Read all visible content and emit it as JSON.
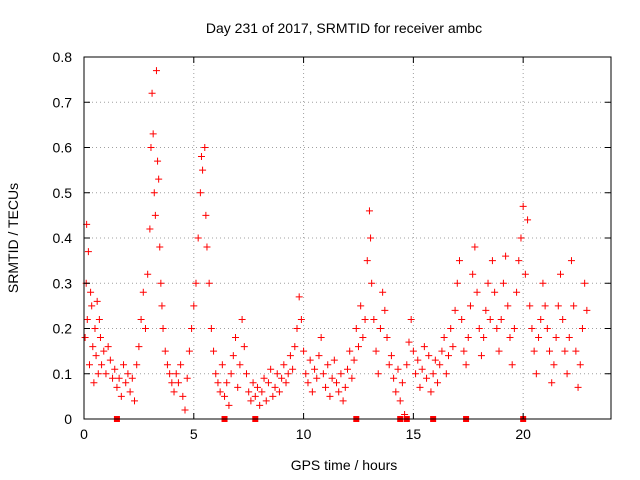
{
  "chart_data": {
    "type": "scatter",
    "title": "Day 231 of 2017, SRMTID for receiver ambc",
    "xlabel": "GPS time / hours",
    "ylabel": "SRMTID / TECUs",
    "xlim": [
      0,
      24
    ],
    "ylim": [
      0,
      0.8
    ],
    "x_ticks": [
      0,
      5,
      10,
      15,
      20
    ],
    "y_ticks": [
      0,
      0.1,
      0.2,
      0.3,
      0.4,
      0.5,
      0.6,
      0.7,
      0.8
    ],
    "x_tick_labels": [
      "0",
      "5",
      "10",
      "15",
      "20"
    ],
    "y_tick_labels": [
      "0",
      "0.1",
      "0.2",
      "0.3",
      "0.4",
      "0.5",
      "0.6",
      "0.7",
      "0.8"
    ],
    "grid": true,
    "marker": "plus",
    "color": "#ff0000",
    "series": [
      {
        "points": [
          [
            0.05,
            0.18
          ],
          [
            0.1,
            0.3
          ],
          [
            0.12,
            0.43
          ],
          [
            0.15,
            0.22
          ],
          [
            0.2,
            0.37
          ],
          [
            0.25,
            0.12
          ],
          [
            0.3,
            0.28
          ],
          [
            0.35,
            0.25
          ],
          [
            0.4,
            0.16
          ],
          [
            0.45,
            0.08
          ],
          [
            0.5,
            0.2
          ],
          [
            0.55,
            0.14
          ],
          [
            0.6,
            0.26
          ],
          [
            0.65,
            0.1
          ],
          [
            0.7,
            0.22
          ],
          [
            0.75,
            0.18
          ],
          [
            0.8,
            0.12
          ],
          [
            0.9,
            0.15
          ],
          [
            1.0,
            0.1
          ],
          [
            1.1,
            0.16
          ],
          [
            1.2,
            0.13
          ],
          [
            1.3,
            0.09
          ],
          [
            1.4,
            0.11
          ],
          [
            1.5,
            0.07
          ],
          [
            1.6,
            0.09
          ],
          [
            1.7,
            0.05
          ],
          [
            1.8,
            0.12
          ],
          [
            1.9,
            0.08
          ],
          [
            2.0,
            0.1
          ],
          [
            2.1,
            0.06
          ],
          [
            2.2,
            0.09
          ],
          [
            2.3,
            0.04
          ],
          [
            2.4,
            0.12
          ],
          [
            2.5,
            0.16
          ],
          [
            2.6,
            0.22
          ],
          [
            2.7,
            0.28
          ],
          [
            2.8,
            0.2
          ],
          [
            2.9,
            0.32
          ],
          [
            3.0,
            0.42
          ],
          [
            3.05,
            0.6
          ],
          [
            3.1,
            0.72
          ],
          [
            3.15,
            0.63
          ],
          [
            3.2,
            0.5
          ],
          [
            3.25,
            0.45
          ],
          [
            3.3,
            0.77
          ],
          [
            3.35,
            0.57
          ],
          [
            3.4,
            0.53
          ],
          [
            3.45,
            0.38
          ],
          [
            3.5,
            0.3
          ],
          [
            3.55,
            0.25
          ],
          [
            3.6,
            0.2
          ],
          [
            3.7,
            0.15
          ],
          [
            3.8,
            0.12
          ],
          [
            3.9,
            0.1
          ],
          [
            4.0,
            0.08
          ],
          [
            4.1,
            0.06
          ],
          [
            4.2,
            0.1
          ],
          [
            4.3,
            0.08
          ],
          [
            4.4,
            0.12
          ],
          [
            4.5,
            0.05
          ],
          [
            4.6,
            0.02
          ],
          [
            4.7,
            0.09
          ],
          [
            4.8,
            0.15
          ],
          [
            4.9,
            0.2
          ],
          [
            5.0,
            0.25
          ],
          [
            5.1,
            0.3
          ],
          [
            5.2,
            0.4
          ],
          [
            5.3,
            0.5
          ],
          [
            5.35,
            0.58
          ],
          [
            5.4,
            0.55
          ],
          [
            5.5,
            0.6
          ],
          [
            5.55,
            0.45
          ],
          [
            5.6,
            0.38
          ],
          [
            5.7,
            0.3
          ],
          [
            5.8,
            0.2
          ],
          [
            5.9,
            0.15
          ],
          [
            6.0,
            0.1
          ],
          [
            6.1,
            0.08
          ],
          [
            6.2,
            0.06
          ],
          [
            6.3,
            0.12
          ],
          [
            6.4,
            0.05
          ],
          [
            6.5,
            0.08
          ],
          [
            6.6,
            0.03
          ],
          [
            6.7,
            0.1
          ],
          [
            6.8,
            0.14
          ],
          [
            6.9,
            0.18
          ],
          [
            7.0,
            0.07
          ],
          [
            7.1,
            0.12
          ],
          [
            7.2,
            0.22
          ],
          [
            7.3,
            0.16
          ],
          [
            7.4,
            0.1
          ],
          [
            7.5,
            0.06
          ],
          [
            7.6,
            0.04
          ],
          [
            7.7,
            0.08
          ],
          [
            7.8,
            0.05
          ],
          [
            7.9,
            0.07
          ],
          [
            8.0,
            0.03
          ],
          [
            8.1,
            0.06
          ],
          [
            8.2,
            0.09
          ],
          [
            8.3,
            0.04
          ],
          [
            8.4,
            0.08
          ],
          [
            8.5,
            0.11
          ],
          [
            8.6,
            0.05
          ],
          [
            8.7,
            0.07
          ],
          [
            8.8,
            0.1
          ],
          [
            8.9,
            0.06
          ],
          [
            9.0,
            0.09
          ],
          [
            9.1,
            0.12
          ],
          [
            9.2,
            0.08
          ],
          [
            9.3,
            0.1
          ],
          [
            9.4,
            0.14
          ],
          [
            9.5,
            0.11
          ],
          [
            9.6,
            0.16
          ],
          [
            9.7,
            0.2
          ],
          [
            9.8,
            0.27
          ],
          [
            9.9,
            0.22
          ],
          [
            10.0,
            0.15
          ],
          [
            10.1,
            0.1
          ],
          [
            10.2,
            0.08
          ],
          [
            10.3,
            0.13
          ],
          [
            10.4,
            0.06
          ],
          [
            10.5,
            0.11
          ],
          [
            10.6,
            0.09
          ],
          [
            10.7,
            0.14
          ],
          [
            10.8,
            0.18
          ],
          [
            10.9,
            0.1
          ],
          [
            11.0,
            0.07
          ],
          [
            11.1,
            0.12
          ],
          [
            11.2,
            0.05
          ],
          [
            11.3,
            0.09
          ],
          [
            11.4,
            0.13
          ],
          [
            11.5,
            0.08
          ],
          [
            11.6,
            0.06
          ],
          [
            11.7,
            0.1
          ],
          [
            11.8,
            0.04
          ],
          [
            11.9,
            0.07
          ],
          [
            12.0,
            0.11
          ],
          [
            12.1,
            0.15
          ],
          [
            12.2,
            0.09
          ],
          [
            12.3,
            0.13
          ],
          [
            12.4,
            0.2
          ],
          [
            12.5,
            0.16
          ],
          [
            12.6,
            0.25
          ],
          [
            12.7,
            0.18
          ],
          [
            12.8,
            0.22
          ],
          [
            12.9,
            0.35
          ],
          [
            13.0,
            0.46
          ],
          [
            13.05,
            0.4
          ],
          [
            13.1,
            0.3
          ],
          [
            13.2,
            0.22
          ],
          [
            13.3,
            0.15
          ],
          [
            13.4,
            0.1
          ],
          [
            13.5,
            0.2
          ],
          [
            13.6,
            0.28
          ],
          [
            13.7,
            0.24
          ],
          [
            13.8,
            0.18
          ],
          [
            13.9,
            0.12
          ],
          [
            14.0,
            0.14
          ],
          [
            14.1,
            0.09
          ],
          [
            14.2,
            0.06
          ],
          [
            14.3,
            0.11
          ],
          [
            14.4,
            0.04
          ],
          [
            14.5,
            0.08
          ],
          [
            14.6,
            0.01
          ],
          [
            14.7,
            0.12
          ],
          [
            14.8,
            0.17
          ],
          [
            14.9,
            0.22
          ],
          [
            15.0,
            0.15
          ],
          [
            15.1,
            0.1
          ],
          [
            15.2,
            0.13
          ],
          [
            15.3,
            0.07
          ],
          [
            15.4,
            0.11
          ],
          [
            15.5,
            0.16
          ],
          [
            15.6,
            0.09
          ],
          [
            15.7,
            0.14
          ],
          [
            15.8,
            0.06
          ],
          [
            15.9,
            0.1
          ],
          [
            16.0,
            0.13
          ],
          [
            16.1,
            0.08
          ],
          [
            16.2,
            0.12
          ],
          [
            16.3,
            0.15
          ],
          [
            16.4,
            0.18
          ],
          [
            16.5,
            0.1
          ],
          [
            16.6,
            0.14
          ],
          [
            16.7,
            0.2
          ],
          [
            16.8,
            0.16
          ],
          [
            16.9,
            0.24
          ],
          [
            17.0,
            0.3
          ],
          [
            17.1,
            0.35
          ],
          [
            17.2,
            0.22
          ],
          [
            17.3,
            0.15
          ],
          [
            17.4,
            0.12
          ],
          [
            17.5,
            0.18
          ],
          [
            17.6,
            0.25
          ],
          [
            17.7,
            0.32
          ],
          [
            17.8,
            0.38
          ],
          [
            17.9,
            0.28
          ],
          [
            18.0,
            0.2
          ],
          [
            18.1,
            0.14
          ],
          [
            18.2,
            0.18
          ],
          [
            18.3,
            0.24
          ],
          [
            18.4,
            0.3
          ],
          [
            18.5,
            0.22
          ],
          [
            18.6,
            0.35
          ],
          [
            18.7,
            0.28
          ],
          [
            18.8,
            0.2
          ],
          [
            18.9,
            0.15
          ],
          [
            19.0,
            0.22
          ],
          [
            19.1,
            0.3
          ],
          [
            19.2,
            0.36
          ],
          [
            19.3,
            0.25
          ],
          [
            19.4,
            0.18
          ],
          [
            19.5,
            0.12
          ],
          [
            19.6,
            0.2
          ],
          [
            19.7,
            0.28
          ],
          [
            19.8,
            0.35
          ],
          [
            19.9,
            0.4
          ],
          [
            20.0,
            0.47
          ],
          [
            20.1,
            0.32
          ],
          [
            20.2,
            0.44
          ],
          [
            20.3,
            0.25
          ],
          [
            20.4,
            0.2
          ],
          [
            20.5,
            0.15
          ],
          [
            20.6,
            0.1
          ],
          [
            20.7,
            0.18
          ],
          [
            20.8,
            0.22
          ],
          [
            20.9,
            0.3
          ],
          [
            21.0,
            0.25
          ],
          [
            21.1,
            0.2
          ],
          [
            21.2,
            0.15
          ],
          [
            21.3,
            0.08
          ],
          [
            21.4,
            0.12
          ],
          [
            21.5,
            0.18
          ],
          [
            21.6,
            0.25
          ],
          [
            21.7,
            0.32
          ],
          [
            21.8,
            0.22
          ],
          [
            21.9,
            0.15
          ],
          [
            22.0,
            0.1
          ],
          [
            22.1,
            0.18
          ],
          [
            22.2,
            0.35
          ],
          [
            22.3,
            0.25
          ],
          [
            22.4,
            0.15
          ],
          [
            22.5,
            0.07
          ],
          [
            22.6,
            0.12
          ],
          [
            22.7,
            0.2
          ],
          [
            22.8,
            0.3
          ],
          [
            22.9,
            0.24
          ]
        ]
      }
    ],
    "baseline_points": [
      [
        1.5,
        0.0
      ],
      [
        6.4,
        0.0
      ],
      [
        7.8,
        0.0
      ],
      [
        12.4,
        0.0
      ],
      [
        14.4,
        0.0
      ],
      [
        14.7,
        0.0
      ],
      [
        15.9,
        0.0
      ],
      [
        17.4,
        0.0
      ],
      [
        20.0,
        0.0
      ]
    ]
  }
}
